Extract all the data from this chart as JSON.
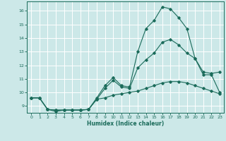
{
  "xlabel": "Humidex (Indice chaleur)",
  "background_color": "#cce8e8",
  "grid_color": "#ffffff",
  "line_color": "#1a6b5a",
  "xlim": [
    -0.5,
    23.5
  ],
  "ylim": [
    8.5,
    16.7
  ],
  "xticks": [
    0,
    1,
    2,
    3,
    4,
    5,
    6,
    7,
    8,
    9,
    10,
    11,
    12,
    13,
    14,
    15,
    16,
    17,
    18,
    19,
    20,
    21,
    22,
    23
  ],
  "yticks": [
    9,
    10,
    11,
    12,
    13,
    14,
    15,
    16
  ],
  "line1_x": [
    0,
    1,
    2,
    3,
    4,
    5,
    6,
    7,
    8,
    9,
    10,
    11,
    12,
    13,
    14,
    15,
    16,
    17,
    18,
    19,
    20,
    21,
    22,
    23
  ],
  "line1_y": [
    9.6,
    9.6,
    8.75,
    8.6,
    8.7,
    8.7,
    8.7,
    8.75,
    9.6,
    10.5,
    11.1,
    10.5,
    10.4,
    13.0,
    14.7,
    15.3,
    16.3,
    16.15,
    15.5,
    14.7,
    12.5,
    11.5,
    11.4,
    11.5
  ],
  "line2_x": [
    0,
    1,
    2,
    3,
    4,
    5,
    6,
    7,
    8,
    9,
    10,
    11,
    12,
    13,
    14,
    15,
    16,
    17,
    18,
    19,
    20,
    21,
    22,
    23
  ],
  "line2_y": [
    9.6,
    9.6,
    8.75,
    8.7,
    8.7,
    8.7,
    8.7,
    8.75,
    9.5,
    10.3,
    10.9,
    10.4,
    10.3,
    11.8,
    12.4,
    12.9,
    13.7,
    13.9,
    13.5,
    12.9,
    12.5,
    11.3,
    11.3,
    10.0
  ],
  "line3_x": [
    0,
    1,
    2,
    3,
    4,
    5,
    6,
    7,
    8,
    9,
    10,
    11,
    12,
    13,
    14,
    15,
    16,
    17,
    18,
    19,
    20,
    21,
    22,
    23
  ],
  "line3_y": [
    9.6,
    9.6,
    8.75,
    8.7,
    8.7,
    8.7,
    8.7,
    8.75,
    9.5,
    9.6,
    9.8,
    9.9,
    10.0,
    10.1,
    10.3,
    10.5,
    10.7,
    10.8,
    10.8,
    10.7,
    10.5,
    10.3,
    10.1,
    9.9
  ]
}
